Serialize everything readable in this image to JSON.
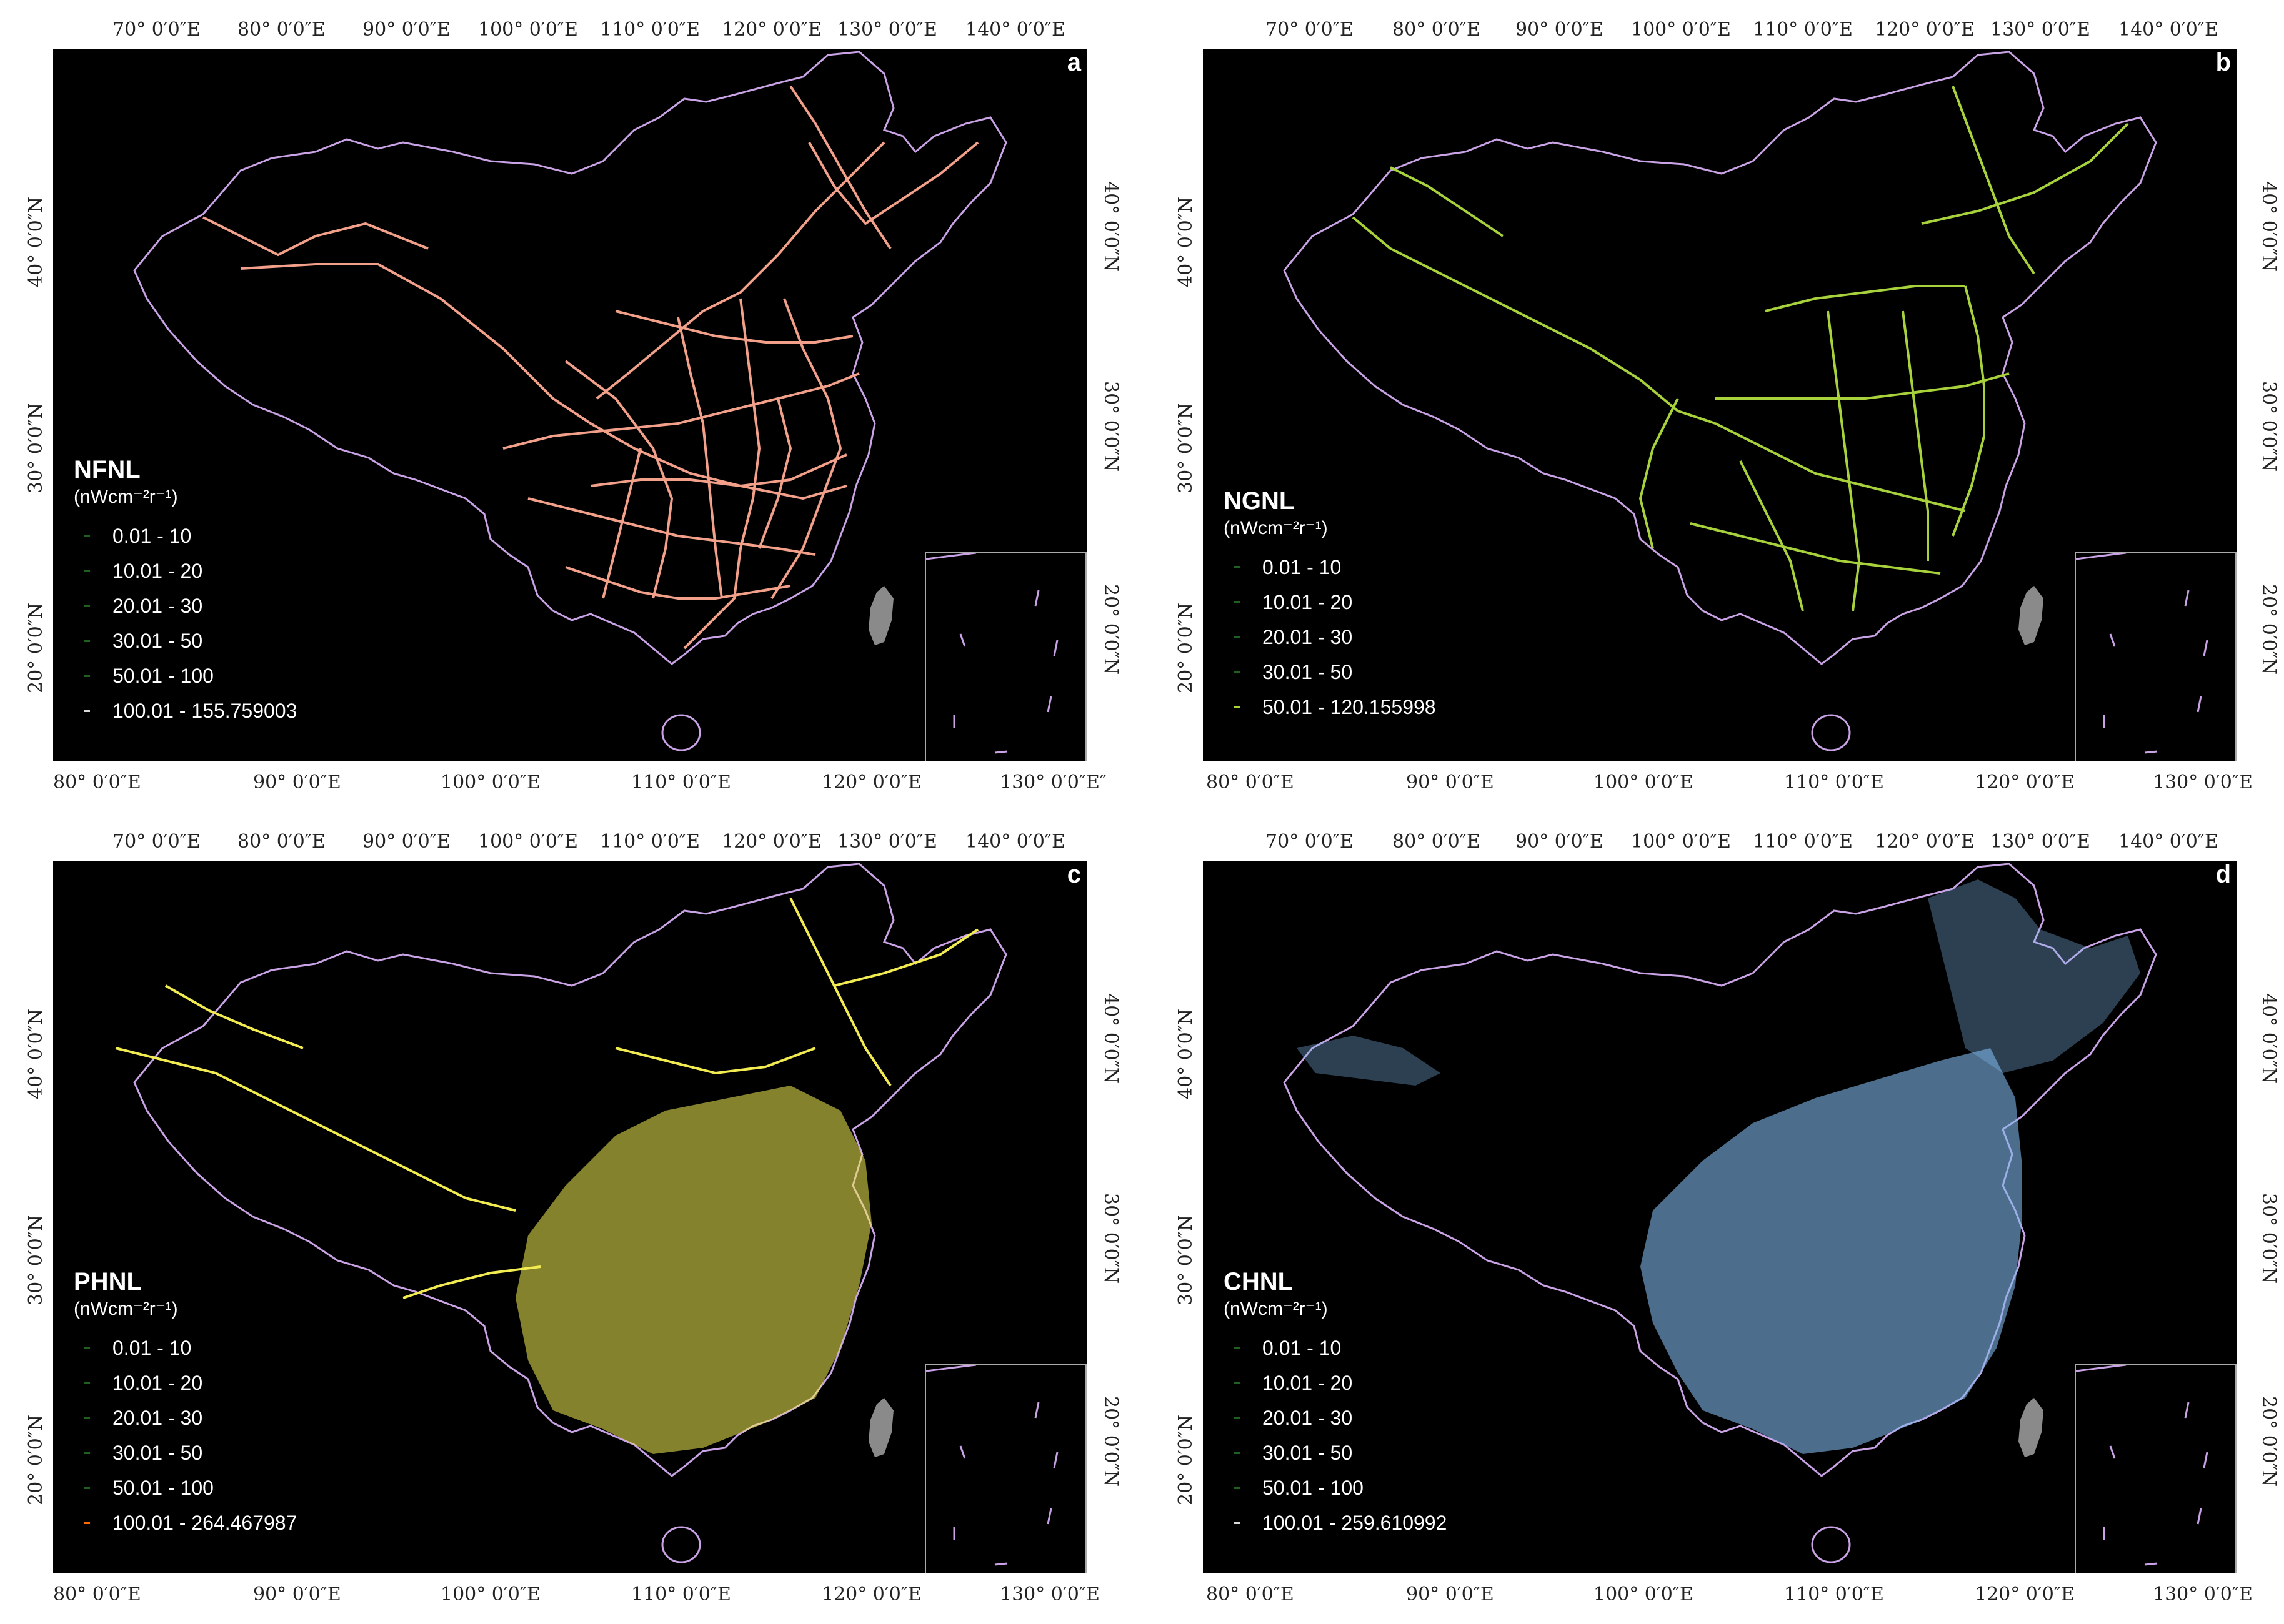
{
  "colors": {
    "border": "#c9a3e6",
    "panel_a": "#f2a08a",
    "panel_b": "#a8d23c",
    "panel_c": "#f2ec52",
    "panel_d": "#7fb8ea",
    "legend_low": "#1f5f1f",
    "legend_high_a": "#d9d9d9",
    "legend_high_c": "#ff6a00",
    "taiwan": "#8a8a8a"
  },
  "axes": {
    "top_ticks": [
      "70° 0′0″E",
      "80° 0′0″E",
      "90° 0′0″E",
      "100° 0′0″E",
      "110° 0′0″E",
      "120° 0′0″E",
      "130° 0′0″E",
      "140° 0′0″E"
    ],
    "bottom_ticks_a": [
      "80° 0′0″E",
      "90° 0′0″E",
      "100° 0′0″E",
      "110° 0′0″E",
      "120° 0′0″E",
      "130° 0′0″E″"
    ],
    "bottom_ticks": [
      "80° 0′0″E",
      "90° 0′0″E",
      "100° 0′0″E",
      "110° 0′0″E",
      "120° 0′0″E",
      "130° 0′0″E"
    ],
    "left_ticks": [
      "40° 0′0″N",
      "30° 0′0″N",
      "20° 0′0″N"
    ],
    "right_ticks": [
      "40° 0′0″N",
      "30° 0′0″N",
      "20° 0′0″N"
    ]
  },
  "panels": [
    {
      "letter": "a",
      "legend_title": "NFNL",
      "unit": "(nWcm⁻²r⁻¹)",
      "classes": [
        "0.01   - 10",
        "10.01 - 20",
        "20.01 - 30",
        "30.01 - 50",
        "50.01 - 100",
        "100.01 - 155.759003"
      ]
    },
    {
      "letter": "b",
      "legend_title": "NGNL",
      "unit": "(nWcm⁻²r⁻¹)",
      "classes": [
        "0.01   - 10",
        "10.01 - 20",
        "20.01 - 30",
        "30.01 - 50",
        "50.01 - 120.155998"
      ]
    },
    {
      "letter": "c",
      "legend_title": "PHNL",
      "unit": "(nWcm⁻²r⁻¹)",
      "classes": [
        "0.01   - 10",
        "10.01 - 20",
        "20.01 - 30",
        "30.01 - 50",
        "50.01 - 100",
        "100.01 - 264.467987"
      ]
    },
    {
      "letter": "d",
      "legend_title": "CHNL",
      "unit": "(nWcm⁻²r⁻¹)",
      "classes": [
        "0.01   - 10",
        "10.01 - 20",
        "20.01 - 30",
        "30.01 - 50",
        "50.01 - 100",
        "100.01 - 259.610992"
      ]
    }
  ]
}
